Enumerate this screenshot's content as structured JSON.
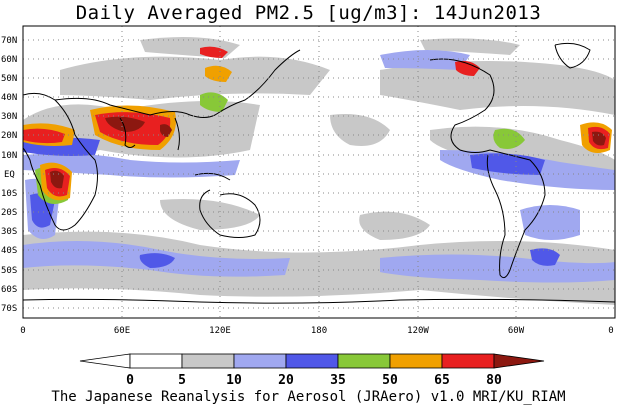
{
  "title": "Daily Averaged PM2.5 [ug/m3]: 14Jun2013",
  "footer": "The Japanese Reanalysis for Aerosol (JRAero) v1.0 MRI/KU_RIAM",
  "map": {
    "lat_labels": [
      "70N",
      "60N",
      "50N",
      "40N",
      "30N",
      "20N",
      "10N",
      "EQ",
      "10S",
      "20S",
      "30S",
      "40S",
      "50S",
      "60S",
      "70S"
    ],
    "lon_labels": [
      "0",
      "60E",
      "120E",
      "180",
      "120W",
      "60W",
      "0"
    ]
  },
  "legend": {
    "labels": [
      "0",
      "5",
      "10",
      "20",
      "35",
      "50",
      "65",
      "80"
    ],
    "colors": [
      "#ffffff",
      "#c8c8c8",
      "#a0a8f0",
      "#5058e8",
      "#88c838",
      "#f0a000",
      "#e82020",
      "#8c1810"
    ]
  }
}
